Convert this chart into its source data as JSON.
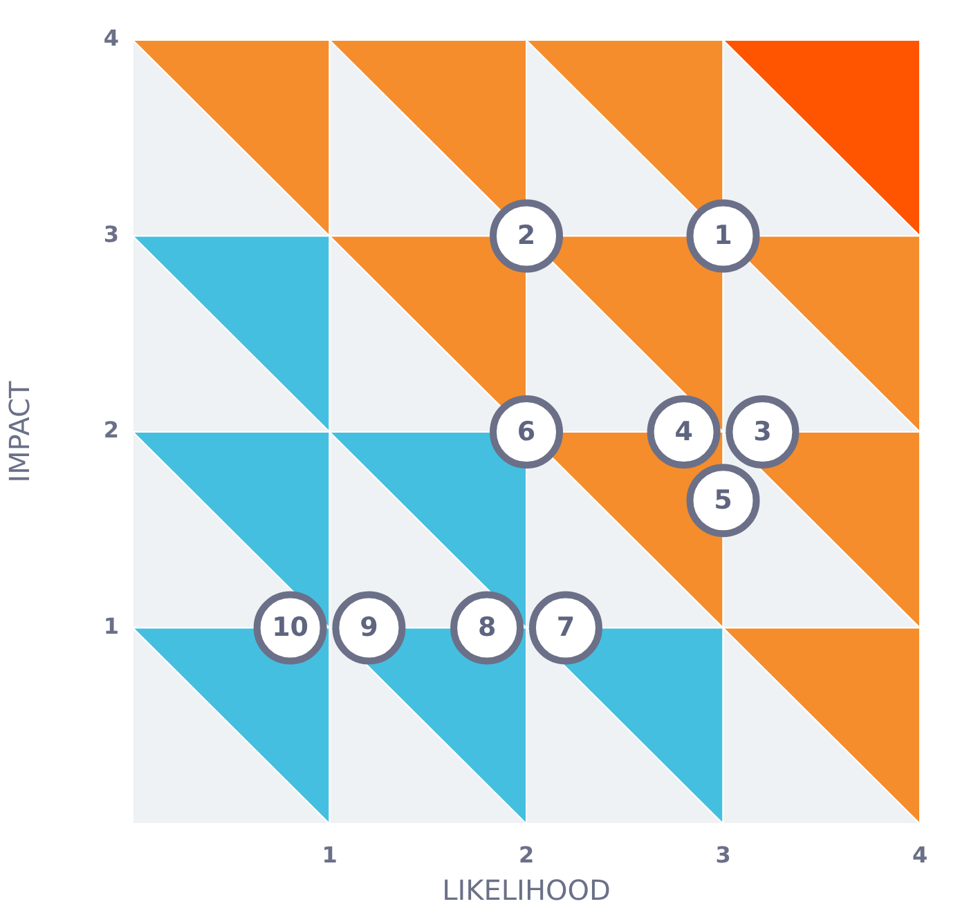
{
  "chart_data": {
    "type": "scatter",
    "xlabel": "LIKELIHOOD",
    "ylabel": "IMPACT",
    "xlim": [
      0,
      4
    ],
    "ylim": [
      0,
      4
    ],
    "xticks": [
      1,
      2,
      3,
      4
    ],
    "yticks": [
      1,
      2,
      3,
      4
    ],
    "grid": false,
    "legend": false,
    "marker": "circle",
    "series": [
      {
        "color": "#6b7088",
        "x": [
          3,
          2,
          3.2,
          2.8,
          3,
          2,
          2.2,
          1.8,
          1.2,
          0.8
        ],
        "values": [
          3,
          3,
          2,
          2,
          1.65,
          2,
          1,
          1,
          1,
          1
        ]
      }
    ],
    "annotations": [
      {
        "text": "1",
        "x": 3,
        "y": 3
      },
      {
        "text": "2",
        "x": 2,
        "y": 3
      },
      {
        "text": "3",
        "x": 3.2,
        "y": 2
      },
      {
        "text": "4",
        "x": 2.8,
        "y": 2
      },
      {
        "text": "5",
        "x": 3,
        "y": 1.65
      },
      {
        "text": "6",
        "x": 2,
        "y": 2
      },
      {
        "text": "7",
        "x": 2.2,
        "y": 1
      },
      {
        "text": "8",
        "x": 1.8,
        "y": 1
      },
      {
        "text": "9",
        "x": 1.2,
        "y": 1
      },
      {
        "text": "10",
        "x": 0.8,
        "y": 1
      }
    ]
  }
}
